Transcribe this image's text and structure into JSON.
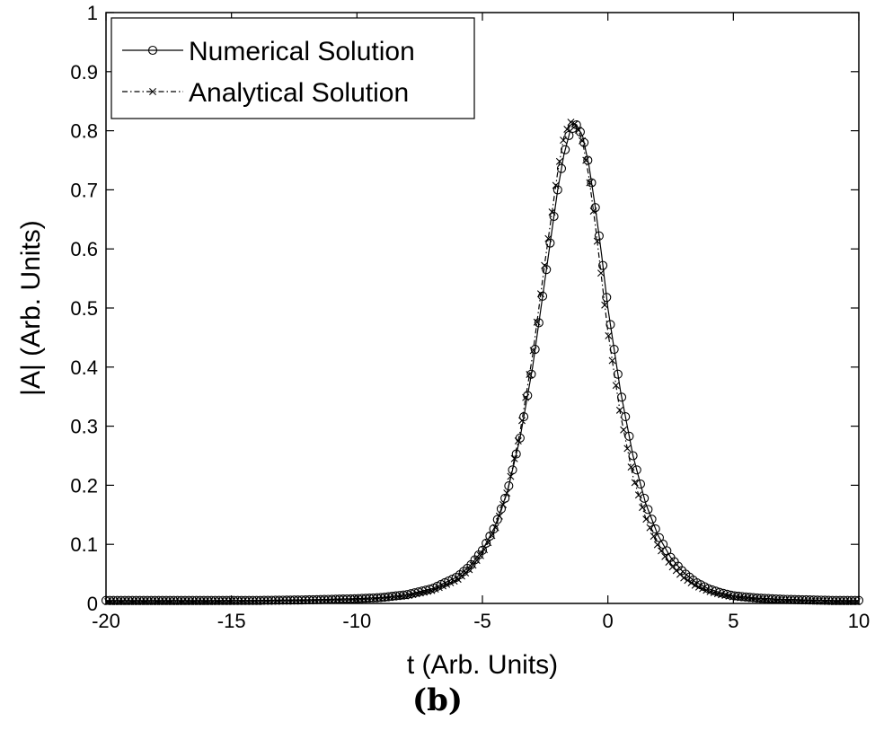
{
  "panel_label": "(b)",
  "chart_data": {
    "type": "line",
    "xlabel": "t (Arb. Units)",
    "ylabel": "|A| (Arb. Units)",
    "xlim": [
      -20,
      10
    ],
    "ylim": [
      0,
      1
    ],
    "x_ticks": [
      -20,
      -15,
      -10,
      -5,
      0,
      5,
      10
    ],
    "y_ticks": [
      0,
      0.1,
      0.2,
      0.3,
      0.4,
      0.5,
      0.6,
      0.7,
      0.8,
      0.9,
      1
    ],
    "x_tick_labels": [
      "-20",
      "-15",
      "-10",
      "-5",
      "0",
      "5",
      "10"
    ],
    "y_tick_labels": [
      "0",
      "0.1",
      "0.2",
      "0.3",
      "0.4",
      "0.5",
      "0.6",
      "0.7",
      "0.8",
      "0.9",
      "1"
    ],
    "grid": false,
    "legend_position": "top-left",
    "series": [
      {
        "name": "Numerical Solution",
        "marker": "circle",
        "line_style": "solid",
        "color": "#000000",
        "x": [
          -20,
          -18,
          -16,
          -14,
          -12,
          -10,
          -9,
          -8,
          -7,
          -6,
          -5.5,
          -5,
          -4.5,
          -4,
          -3.5,
          -3,
          -2.5,
          -2,
          -1.75,
          -1.5,
          -1.25,
          -1,
          -0.75,
          -0.5,
          -0.25,
          0,
          0.5,
          1,
          1.5,
          2,
          2.5,
          3,
          3.5,
          4,
          4.5,
          5,
          6,
          7,
          8,
          9,
          10
        ],
        "y": [
          0.005,
          0.005,
          0.005,
          0.005,
          0.006,
          0.008,
          0.01,
          0.015,
          0.025,
          0.045,
          0.063,
          0.09,
          0.13,
          0.19,
          0.28,
          0.4,
          0.55,
          0.7,
          0.76,
          0.8,
          0.81,
          0.79,
          0.74,
          0.67,
          0.59,
          0.5,
          0.36,
          0.25,
          0.17,
          0.115,
          0.078,
          0.053,
          0.036,
          0.025,
          0.018,
          0.013,
          0.009,
          0.007,
          0.006,
          0.005,
          0.005
        ]
      },
      {
        "name": "Analytical Solution",
        "marker": "x",
        "line_style": "dash-dot",
        "color": "#000000",
        "x": [
          -20,
          -18,
          -16,
          -14,
          -12,
          -10,
          -9,
          -8,
          -7,
          -6,
          -5.5,
          -5,
          -4.5,
          -4,
          -3.5,
          -3,
          -2.5,
          -2,
          -1.75,
          -1.5,
          -1.25,
          -1,
          -0.75,
          -0.5,
          -0.25,
          0,
          0.5,
          1,
          1.5,
          2,
          2.5,
          3,
          3.5,
          4,
          4.5,
          5,
          6,
          7,
          8,
          9,
          10
        ],
        "y": [
          0.003,
          0.003,
          0.003,
          0.004,
          0.005,
          0.007,
          0.009,
          0.013,
          0.022,
          0.04,
          0.058,
          0.085,
          0.125,
          0.19,
          0.29,
          0.42,
          0.58,
          0.73,
          0.79,
          0.815,
          0.81,
          0.78,
          0.72,
          0.64,
          0.55,
          0.46,
          0.32,
          0.215,
          0.145,
          0.097,
          0.065,
          0.044,
          0.03,
          0.021,
          0.015,
          0.011,
          0.007,
          0.005,
          0.004,
          0.003,
          0.003
        ]
      }
    ]
  }
}
